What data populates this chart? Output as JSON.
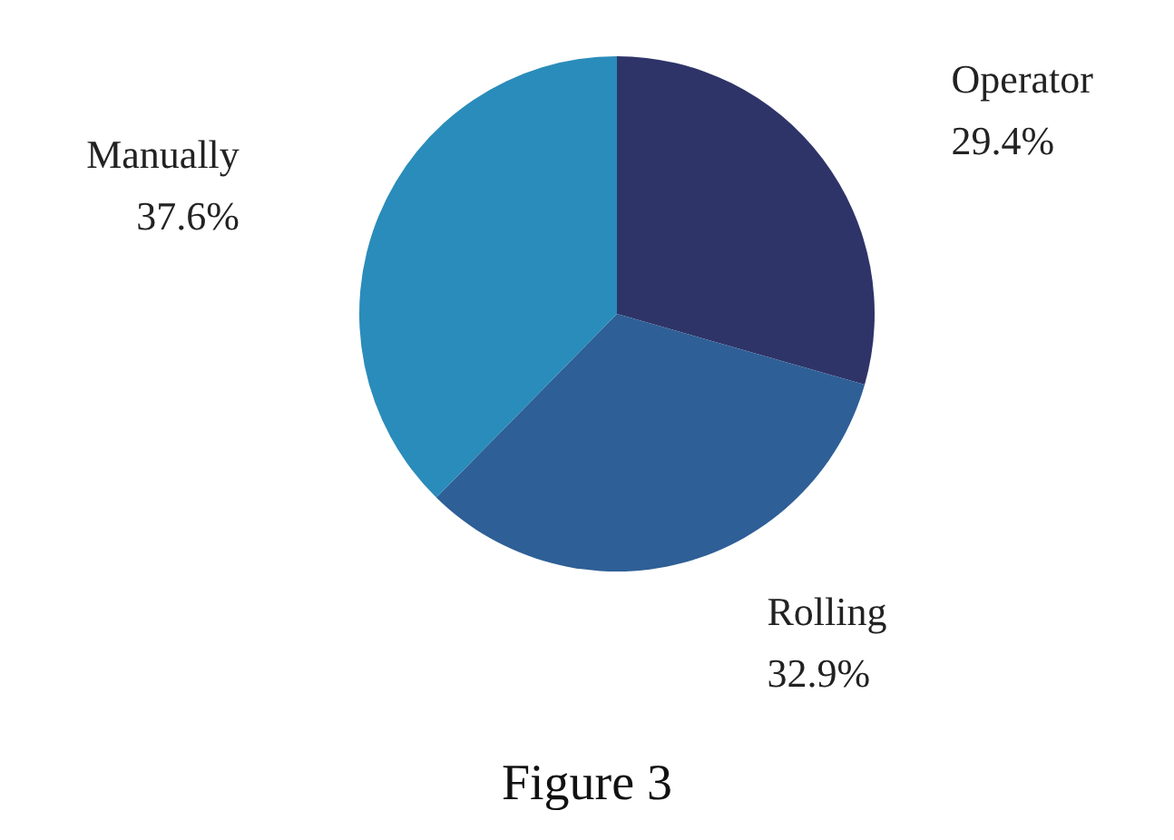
{
  "chart_data": {
    "type": "pie",
    "categories": [
      "Operator",
      "Rolling",
      "Manually"
    ],
    "values": [
      29.4,
      32.9,
      37.6
    ],
    "colors": [
      "#2e3468",
      "#2e5f96",
      "#2a8cba"
    ],
    "value_labels": [
      "29.4%",
      "32.9%",
      "37.6%"
    ],
    "annotations": [
      "Figure 3"
    ]
  }
}
